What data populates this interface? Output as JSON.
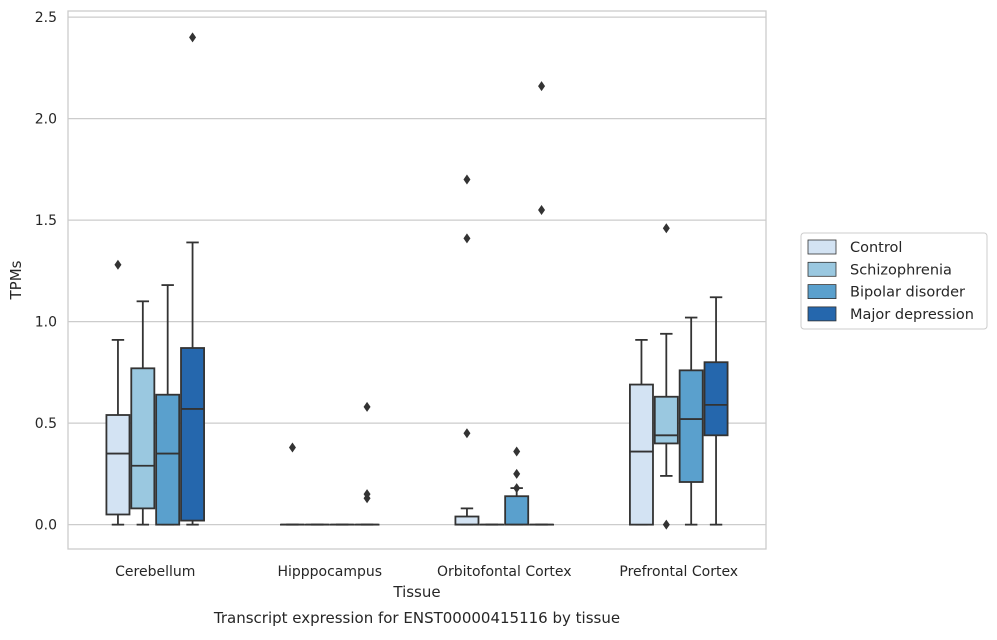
{
  "chart_data": {
    "type": "box",
    "title": "",
    "caption": "Transcript expression for ENST00000415116 by tissue",
    "xlabel": "Tissue",
    "ylabel": "TPMs",
    "ylim": [
      -0.12,
      2.53
    ],
    "yticks": [
      "0.0",
      "0.5",
      "1.0",
      "1.5",
      "2.0",
      "2.5"
    ],
    "ytick_values": [
      0,
      0.5,
      1.0,
      1.5,
      2.0,
      2.5
    ],
    "categories": [
      "Cerebellum",
      "Hipppocampus",
      "Orbitofontal Cortex",
      "Prefrontal Cortex"
    ],
    "grid": "horizontal",
    "legend_position": "outside-right",
    "series": [
      {
        "name": "Control",
        "color": "#d3e3f3",
        "boxes": [
          {
            "whisker_low": 0,
            "q1": 0.05,
            "median": 0.35,
            "q3": 0.54,
            "whisker_high": 0.91,
            "outliers": [
              1.28
            ]
          },
          {
            "whisker_low": 0,
            "q1": 0,
            "median": 0,
            "q3": 0,
            "whisker_high": 0,
            "outliers": [
              0.38
            ]
          },
          {
            "whisker_low": 0,
            "q1": 0,
            "median": 0,
            "q3": 0.04,
            "whisker_high": 0.08,
            "outliers": [
              0.45,
              1.41,
              1.7
            ]
          },
          {
            "whisker_low": 0,
            "q1": 0,
            "median": 0.36,
            "q3": 0.69,
            "whisker_high": 0.91,
            "outliers": []
          }
        ]
      },
      {
        "name": "Schizophrenia",
        "color": "#9ac8e0",
        "boxes": [
          {
            "whisker_low": 0,
            "q1": 0.08,
            "median": 0.29,
            "q3": 0.77,
            "whisker_high": 1.1,
            "outliers": []
          },
          {
            "whisker_low": 0,
            "q1": 0,
            "median": 0,
            "q3": 0,
            "whisker_high": 0,
            "outliers": []
          },
          {
            "whisker_low": 0,
            "q1": 0,
            "median": 0,
            "q3": 0,
            "whisker_high": 0,
            "outliers": []
          },
          {
            "whisker_low": 0.24,
            "q1": 0.4,
            "median": 0.44,
            "q3": 0.63,
            "whisker_high": 0.94,
            "outliers": [
              0.0,
              1.46
            ]
          }
        ]
      },
      {
        "name": "Bipolar disorder",
        "color": "#5aa0cd",
        "boxes": [
          {
            "whisker_low": 0,
            "q1": 0,
            "median": 0.35,
            "q3": 0.64,
            "whisker_high": 1.18,
            "outliers": []
          },
          {
            "whisker_low": 0,
            "q1": 0,
            "median": 0,
            "q3": 0,
            "whisker_high": 0,
            "outliers": []
          },
          {
            "whisker_low": 0,
            "q1": 0,
            "median": 0,
            "q3": 0.14,
            "whisker_high": 0.18,
            "outliers": [
              0.18,
              0.25,
              0.36
            ]
          },
          {
            "whisker_low": 0,
            "q1": 0.21,
            "median": 0.52,
            "q3": 0.76,
            "whisker_high": 1.02,
            "outliers": []
          }
        ]
      },
      {
        "name": "Major depression",
        "color": "#2567ad",
        "boxes": [
          {
            "whisker_low": 0,
            "q1": 0.02,
            "median": 0.57,
            "q3": 0.87,
            "whisker_high": 1.39,
            "outliers": [
              2.4
            ]
          },
          {
            "whisker_low": 0,
            "q1": 0,
            "median": 0,
            "q3": 0,
            "whisker_high": 0,
            "outliers": [
              0.13,
              0.15,
              0.58
            ]
          },
          {
            "whisker_low": 0,
            "q1": 0,
            "median": 0,
            "q3": 0,
            "whisker_high": 0,
            "outliers": [
              1.55,
              2.16
            ]
          },
          {
            "whisker_low": 0,
            "q1": 0.44,
            "median": 0.59,
            "q3": 0.8,
            "whisker_high": 1.12,
            "outliers": []
          }
        ]
      }
    ]
  }
}
